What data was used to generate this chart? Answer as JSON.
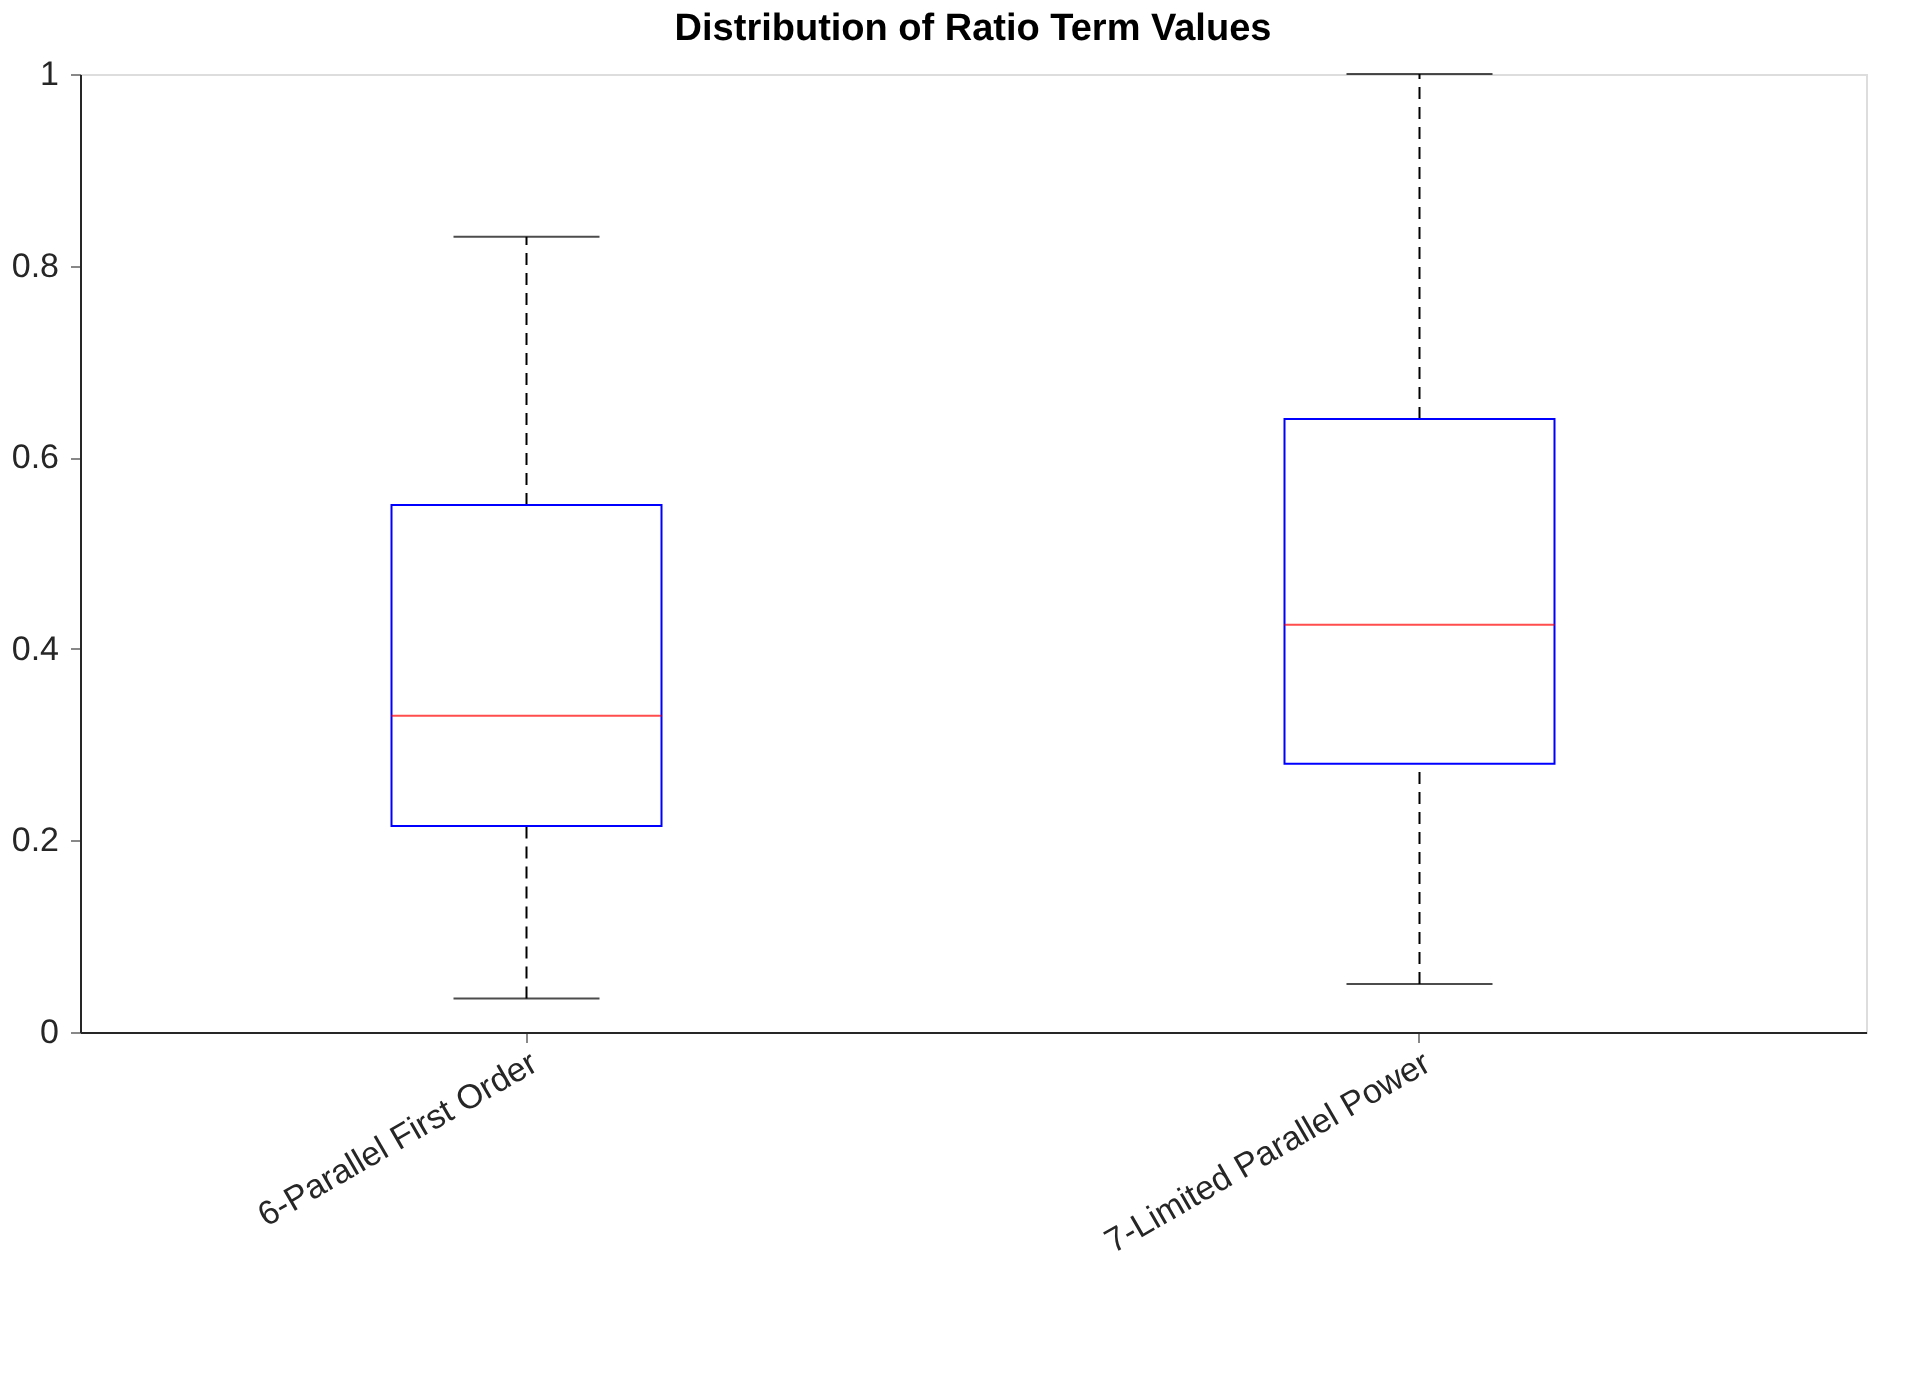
{
  "chart_data": {
    "type": "box",
    "title": "Distribution of Ratio Term Values",
    "categories": [
      "6-Parallel First Order",
      "7-Limited Parallel Power"
    ],
    "series": [
      {
        "color": "#0000ff",
        "boxes": [
          {
            "low": 0.035,
            "q1": 0.215,
            "median": 0.33,
            "q3": 0.55,
            "high": 0.83
          },
          {
            "low": 0.05,
            "q1": 0.28,
            "median": 0.425,
            "q3": 0.64,
            "high": 1.0
          }
        ]
      }
    ],
    "ylim": [
      0,
      1
    ],
    "yticks": [
      0,
      0.2,
      0.4,
      0.6,
      0.8,
      1
    ],
    "grid": false
  }
}
